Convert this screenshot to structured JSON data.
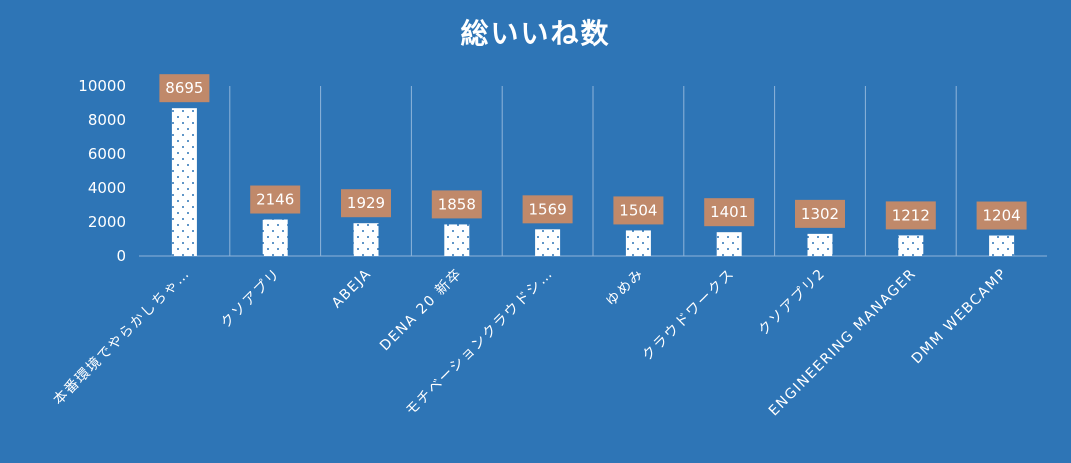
{
  "chart_data": {
    "type": "bar",
    "title": "総いいね数",
    "categories": [
      "本番環境でやらかしちゃ…",
      "クソアプリ",
      "ABEJA",
      "DENA 20 新卒",
      "モチベーションクラウドシ…",
      "ゆめみ",
      "クラウドワークス",
      "クソアプリ2",
      "ENGINEERING MANAGER",
      "DMM WEBCAMP"
    ],
    "values": [
      8695,
      2146,
      1929,
      1858,
      1569,
      1504,
      1401,
      1302,
      1212,
      1204
    ],
    "yticks": [
      "0",
      "2000",
      "4000",
      "6000",
      "8000",
      "10000"
    ],
    "ylim": [
      0,
      10000
    ],
    "grid": "vertical",
    "legend": "none",
    "colors": {
      "background": "#2e75b6",
      "bar": "#ffffff",
      "bar_dots": "#2e75b6",
      "data_label_bg": "#c0896a",
      "gridline": "#8fb4da",
      "text": "#ffffff"
    }
  }
}
